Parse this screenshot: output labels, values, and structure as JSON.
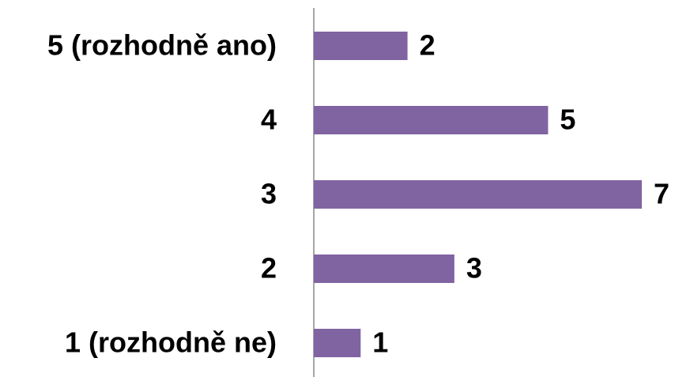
{
  "chart_data": {
    "type": "bar",
    "orientation": "horizontal",
    "categories": [
      "5 (rozhodně ano)",
      "4",
      "3",
      "2",
      "1 (rozhodně ne)"
    ],
    "values": [
      2,
      5,
      7,
      3,
      1
    ],
    "color": "#8064a2"
  }
}
